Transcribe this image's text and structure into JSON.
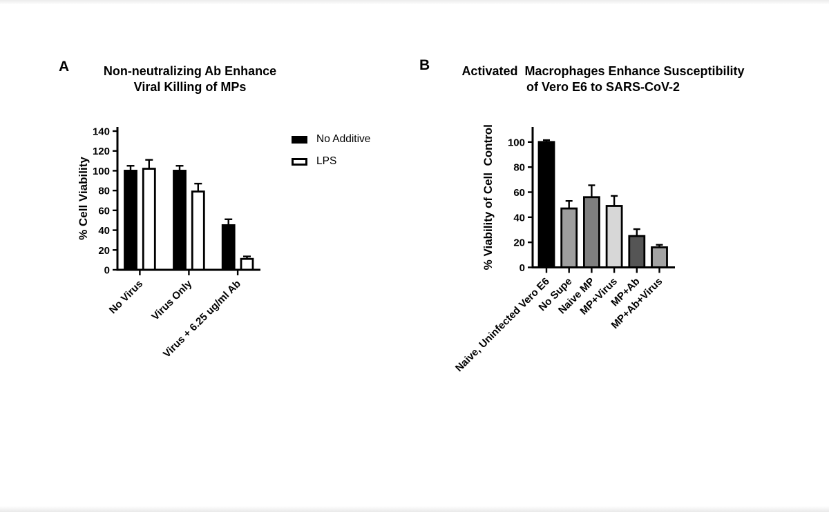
{
  "page": {
    "background": "#ffffff"
  },
  "panels": [
    {
      "letter": "A",
      "title_line1": "Non-neutralizing Ab Enhance",
      "title_line2": "Viral Killing of MPs",
      "legend": [
        {
          "label": "No Additive",
          "fill": "#000000"
        },
        {
          "label": "LPS",
          "fill": "#ffffff"
        }
      ]
    },
    {
      "letter": "B",
      "title_line1": "Activated  Macrophages Enhance Susceptibility",
      "title_line2": "of Vero E6 to SARS-CoV-2"
    }
  ],
  "chart_data": [
    {
      "type": "bar",
      "panel": "A",
      "title": "Non-neutralizing Ab Enhance Viral Killing of MPs",
      "xlabel": "",
      "ylabel": "% Cell Viability",
      "ylim": [
        0,
        140
      ],
      "ytick_step": 20,
      "grid": false,
      "legend_position": "right",
      "error_bars": "upper SD caps",
      "categories": [
        "No Virus",
        "Virus Only",
        "Virus + 6.25 ug/ml Ab"
      ],
      "series": [
        {
          "name": "No Additive",
          "fill": "#000000",
          "values": [
            100,
            100,
            45
          ],
          "errors": [
            5,
            5,
            6
          ]
        },
        {
          "name": "LPS",
          "fill": "#ffffff",
          "values": [
            102,
            79,
            11
          ],
          "errors": [
            9,
            8,
            2.5
          ]
        }
      ]
    },
    {
      "type": "bar",
      "panel": "B",
      "title": "Activated  Macrophages Enhance Susceptibility of Vero E6 to SARS-CoV-2",
      "xlabel": "",
      "ylabel": "% Viability of Cell  Control",
      "ylim": [
        0,
        100
      ],
      "ytick_step": 20,
      "grid": false,
      "legend_position": "none",
      "error_bars": "upper SD caps",
      "categories": [
        "Naive, Uninfected Vero E6",
        "No Supe",
        "Naive MP",
        "MP+Virus",
        "MP+Ab",
        "MP+Ab+Virus"
      ],
      "bar_fills": [
        "#000000",
        "#9e9e9e",
        "#7f7f7f",
        "#d7d7d7",
        "#555555",
        "#a3a3a3"
      ],
      "series": [
        {
          "name": "% Viability",
          "values": [
            100,
            47,
            56,
            49,
            25,
            16
          ],
          "errors": [
            1.5,
            6,
            9.5,
            8,
            5.5,
            2
          ]
        }
      ]
    }
  ]
}
